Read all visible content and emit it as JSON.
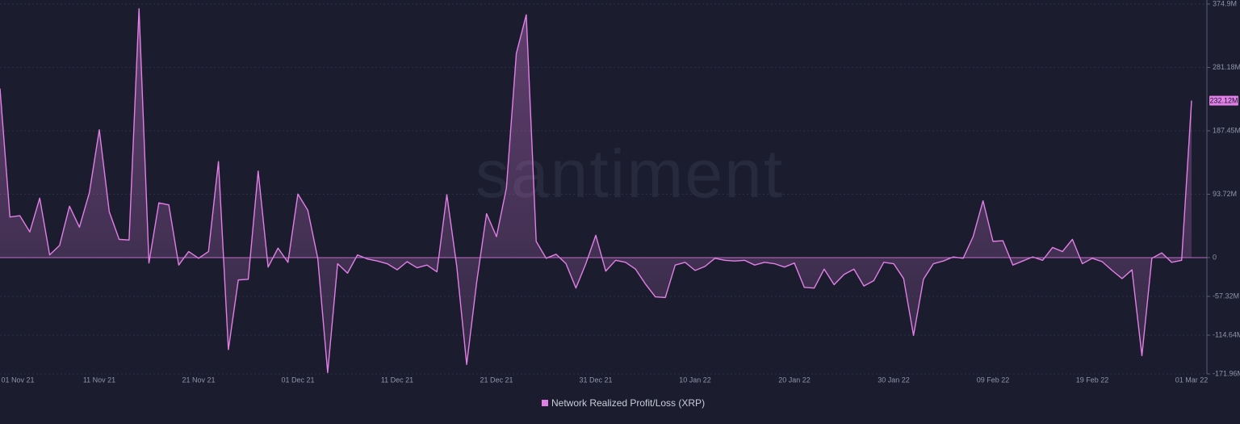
{
  "chart_data": {
    "type": "line",
    "watermark": "santiment",
    "categories": [
      "01 Nov 21",
      null,
      null,
      null,
      null,
      null,
      null,
      null,
      null,
      null,
      "11 Nov 21",
      null,
      null,
      null,
      null,
      null,
      null,
      null,
      null,
      null,
      "21 Nov 21",
      null,
      null,
      null,
      null,
      null,
      null,
      null,
      null,
      null,
      "01 Dec 21",
      null,
      null,
      null,
      null,
      null,
      null,
      null,
      null,
      null,
      "11 Dec 21",
      null,
      null,
      null,
      null,
      null,
      null,
      null,
      null,
      null,
      "21 Dec 21",
      null,
      null,
      null,
      null,
      null,
      null,
      null,
      null,
      null,
      "31 Dec 21",
      null,
      null,
      null,
      null,
      null,
      null,
      null,
      null,
      null,
      "10 Jan 22",
      null,
      null,
      null,
      null,
      null,
      null,
      null,
      null,
      null,
      "20 Jan 22",
      null,
      null,
      null,
      null,
      null,
      null,
      null,
      null,
      null,
      "30 Jan 22",
      null,
      null,
      null,
      null,
      null,
      null,
      null,
      null,
      null,
      "09 Feb 22",
      null,
      null,
      null,
      null,
      null,
      null,
      null,
      null,
      null,
      "19 Feb 22",
      null,
      null,
      null,
      null,
      null,
      null,
      null,
      null,
      null,
      "01 Mar 22"
    ],
    "series": [
      {
        "name": "Network Realized Profit/Loss (XRP)",
        "color": "#e27fe6",
        "values": [
          250,
          60,
          62,
          38,
          88,
          4,
          18,
          76,
          45,
          96,
          189,
          68,
          27,
          26,
          368,
          -8,
          81,
          78,
          -11,
          9,
          -1,
          9,
          142,
          -136,
          -33,
          -32,
          128,
          -14,
          14,
          -7,
          94,
          70,
          -1,
          -170,
          -9,
          -23,
          4,
          -2,
          -5,
          -9,
          -18,
          -6,
          -15,
          -11,
          -21,
          93,
          -13,
          -158,
          -37,
          65,
          31,
          103,
          302,
          359,
          24,
          -1,
          5,
          -9,
          -45,
          -9,
          33,
          -20,
          -4,
          -7,
          -17,
          -39,
          -58,
          -59,
          -11,
          -7,
          -19,
          -13,
          -1,
          -4,
          -5,
          -4,
          -11,
          -7,
          -9,
          -14,
          -8,
          -44,
          -45,
          -17,
          -40,
          -25,
          -17,
          -42,
          -34,
          -7,
          -9,
          -31,
          -115,
          -32,
          -9,
          -5,
          1,
          -1,
          31,
          84,
          24,
          25,
          -11,
          -5,
          1,
          -4,
          15,
          9,
          27,
          -9,
          -1,
          -6,
          -19,
          -31,
          -18,
          -145,
          -1,
          7,
          -7,
          -4,
          232.12
        ]
      }
    ],
    "current_label": {
      "value": 232.12,
      "label": "232.12M"
    },
    "ylim": [
      -171.96,
      374.9
    ],
    "yticks": [
      {
        "value": 374.9,
        "label": "374.9M"
      },
      {
        "value": 281.18,
        "label": "281.18M"
      },
      {
        "value": 187.45,
        "label": "187.45M"
      },
      {
        "value": 93.72,
        "label": "93.72M"
      },
      0,
      {
        "value": -57.32,
        "label": "-57.32M"
      },
      {
        "value": -114.64,
        "label": "-114.64M"
      },
      {
        "value": -171.96,
        "label": "-171.96M"
      }
    ],
    "grid": true
  }
}
